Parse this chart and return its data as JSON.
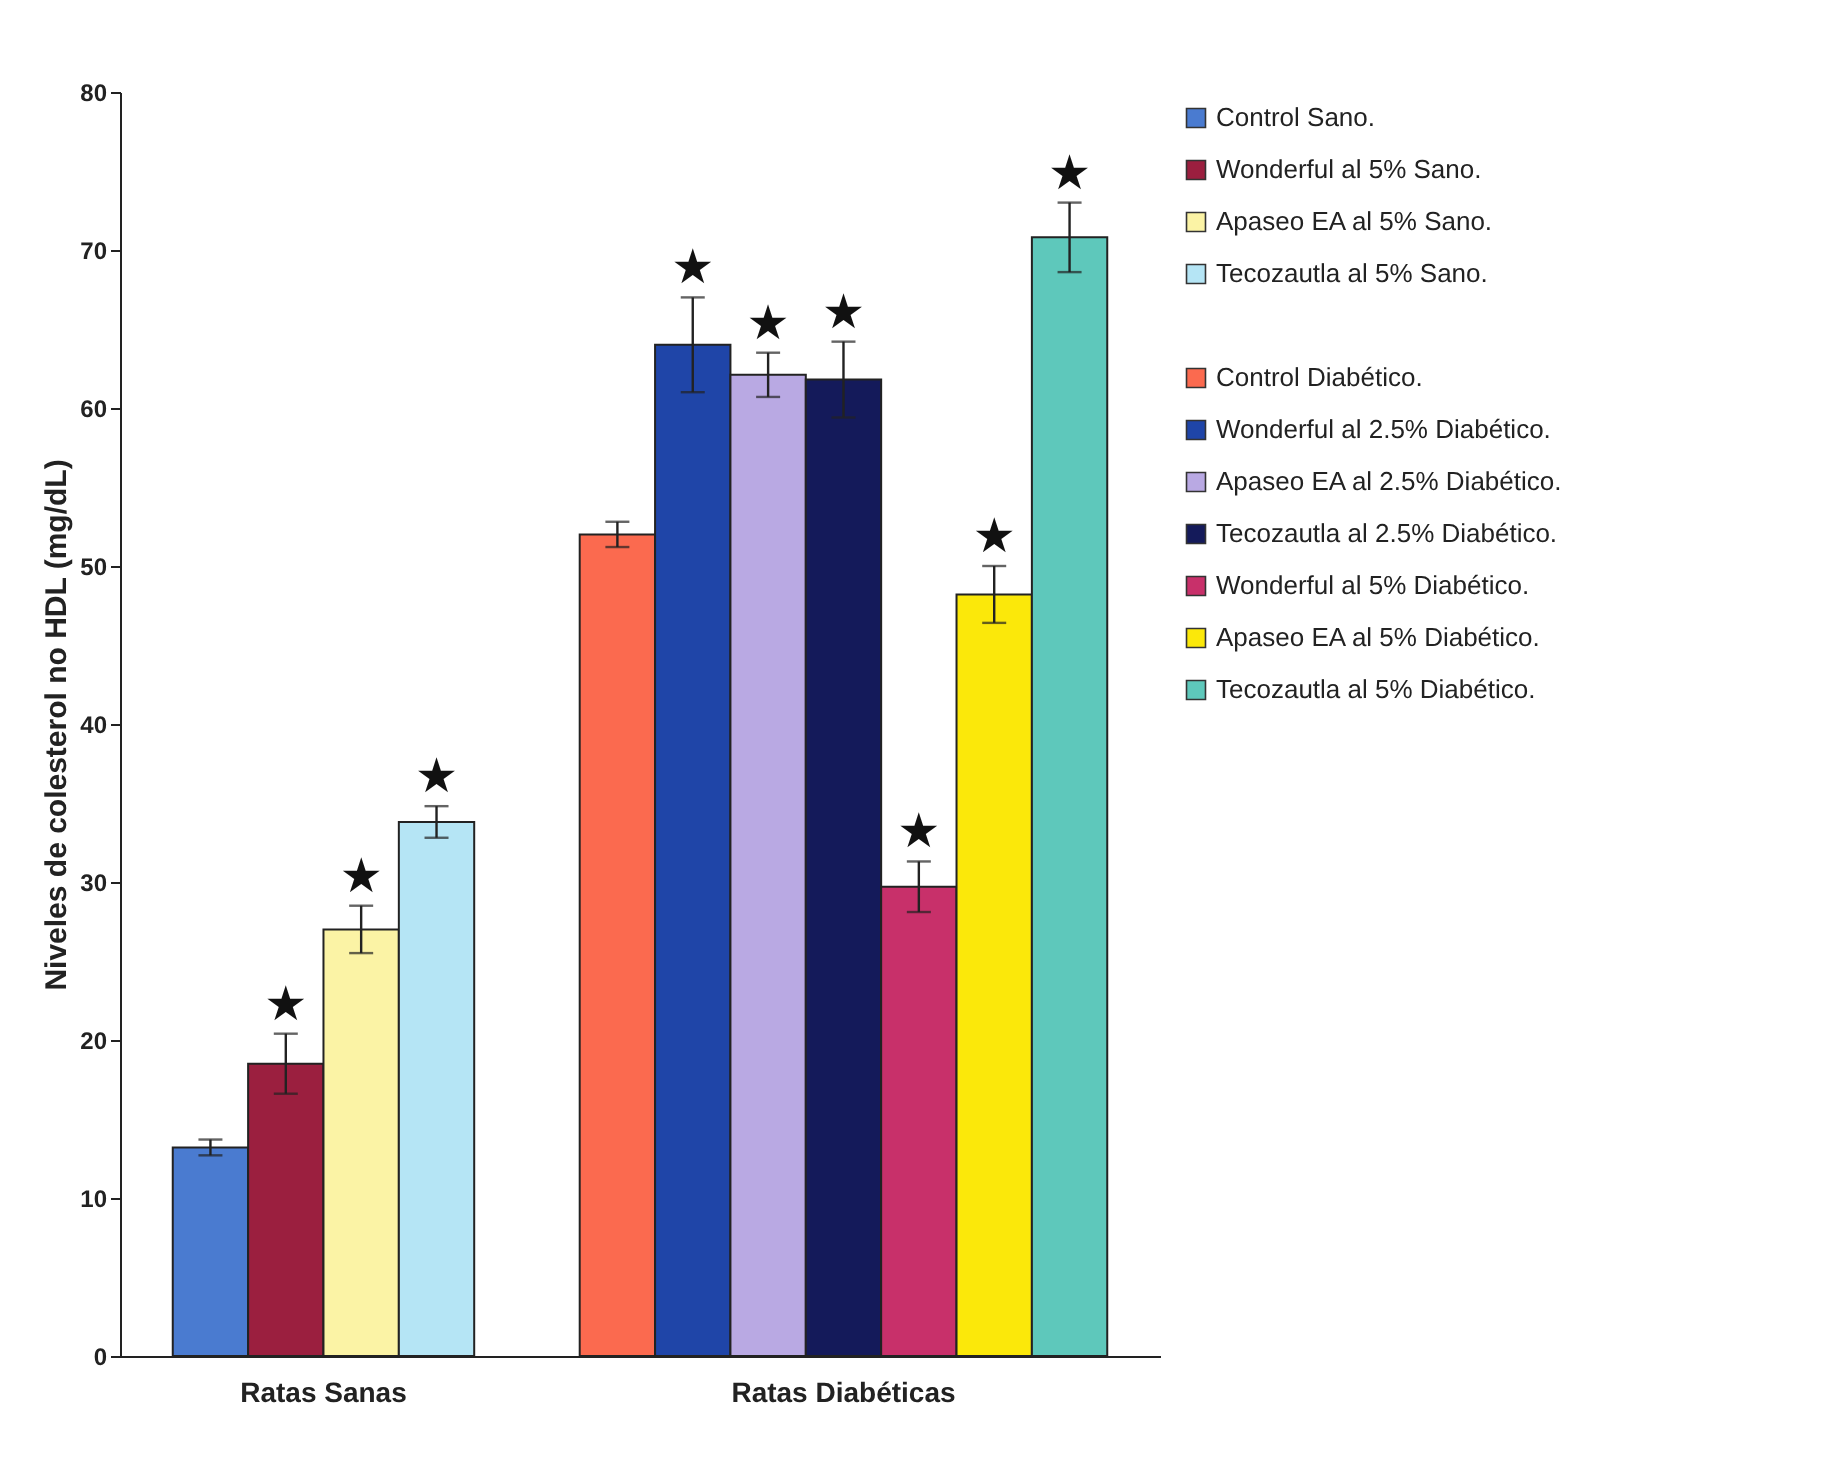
{
  "chart_data": {
    "type": "bar",
    "ylabel": "Niveles de colesterol no HDL (mg/dL)",
    "categories": [
      "Ratas Sanas",
      "Ratas Diabéticas"
    ],
    "ylim": [
      0,
      80
    ],
    "yticks": [
      0,
      10,
      20,
      30,
      40,
      50,
      60,
      70,
      80
    ],
    "grid": false,
    "legend": "right",
    "series": [
      {
        "name": "Control Sano.",
        "color": "#4a7bd0",
        "values": [
          13.2,
          null
        ],
        "errors": [
          0.5,
          null
        ]
      },
      {
        "name": "Wonderful al 5% Sano.",
        "color": "#9b1f3f",
        "values": [
          18.5,
          null
        ],
        "errors": [
          1.9,
          null
        ],
        "value_labels": [
          "★",
          null
        ]
      },
      {
        "name": "Apaseo EA al 5% Sano.",
        "color": "#fbf3a5",
        "values": [
          27.0,
          null
        ],
        "errors": [
          1.5,
          null
        ],
        "value_labels": [
          "★",
          null
        ]
      },
      {
        "name": "Tecozautla al 5% Sano.",
        "color": "#b5e5f5",
        "values": [
          33.8,
          null
        ],
        "errors": [
          1.0,
          null
        ],
        "value_labels": [
          "★",
          null
        ]
      },
      {
        "name": "Control Diabético.",
        "color": "#fb6a4f",
        "values": [
          null,
          52.0
        ],
        "errors": [
          null,
          0.8
        ]
      },
      {
        "name": "Wonderful al 2.5% Diabético.",
        "color": "#1f45a8",
        "values": [
          null,
          64.0
        ],
        "errors": [
          null,
          3.0
        ],
        "value_labels": [
          null,
          "★"
        ]
      },
      {
        "name": "Apaseo EA al 2.5% Diabético.",
        "color": "#b9a9e3",
        "values": [
          null,
          62.1
        ],
        "errors": [
          null,
          1.4
        ],
        "value_labels": [
          null,
          "★"
        ]
      },
      {
        "name": "Tecozautla al 2.5% Diabético.",
        "color": "#141a5a",
        "values": [
          null,
          61.8
        ],
        "errors": [
          null,
          2.4
        ],
        "value_labels": [
          null,
          "★"
        ]
      },
      {
        "name": "Wonderful al 5% Diabético.",
        "color": "#c8306a",
        "values": [
          null,
          29.7
        ],
        "errors": [
          null,
          1.6
        ],
        "value_labels": [
          null,
          "★"
        ]
      },
      {
        "name": "Apaseo EA al 5% Diabético.",
        "color": "#fbe80a",
        "values": [
          null,
          48.2
        ],
        "errors": [
          null,
          1.8
        ],
        "value_labels": [
          null,
          "★"
        ]
      },
      {
        "name": "Tecozautla al 5% Diabético.",
        "color": "#5ec8bb",
        "values": [
          null,
          70.8
        ],
        "errors": [
          null,
          2.2
        ],
        "value_labels": [
          null,
          "★"
        ]
      }
    ]
  }
}
